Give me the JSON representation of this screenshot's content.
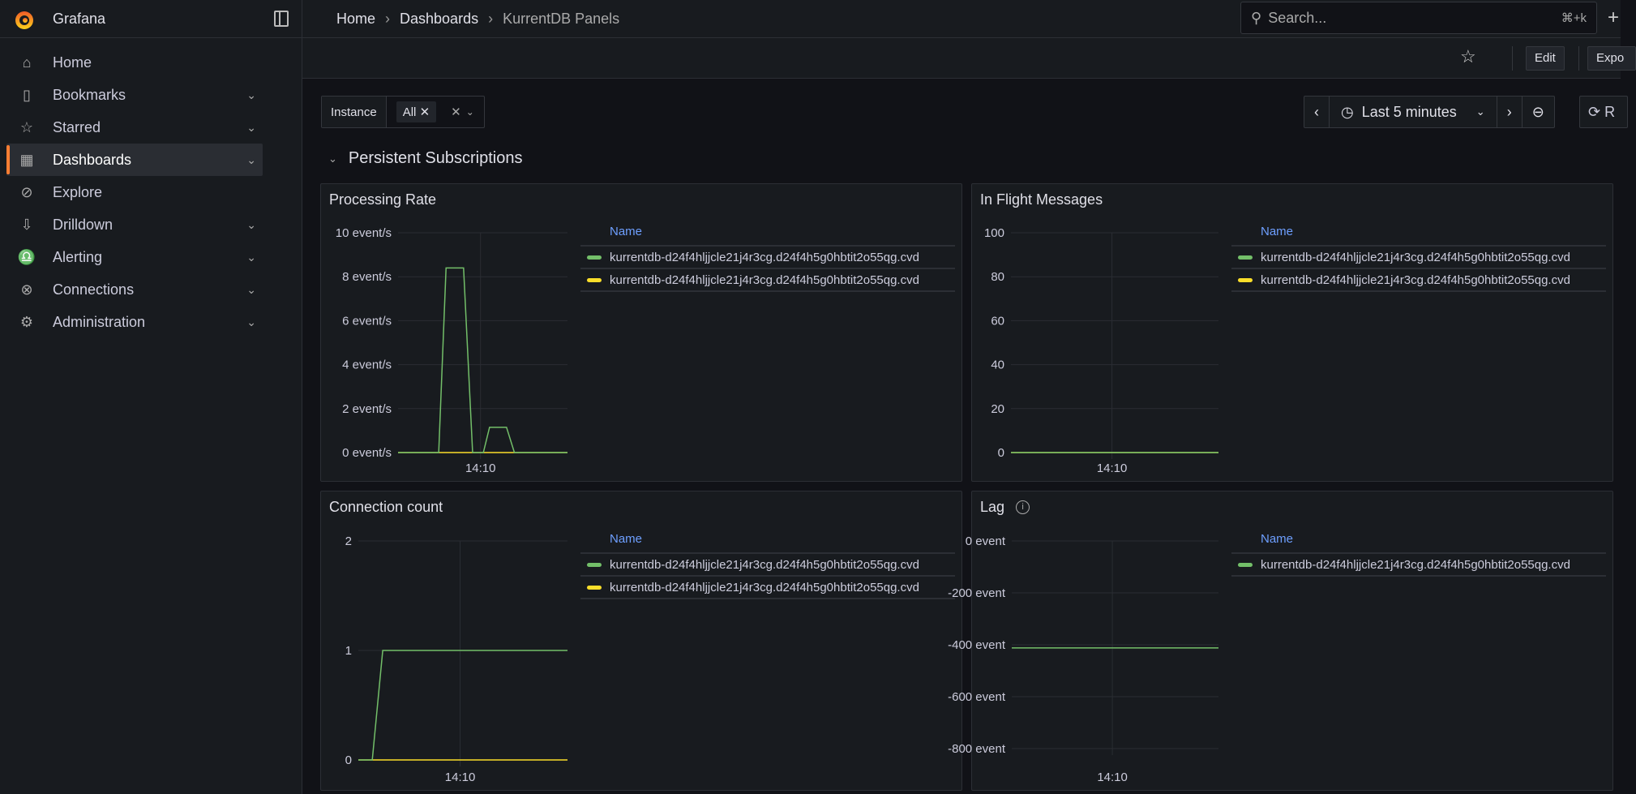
{
  "app": {
    "brand": "Grafana"
  },
  "sidebar": {
    "items": [
      {
        "label": "Home",
        "icon": "home-icon",
        "glyph": "⌂",
        "chevron": false
      },
      {
        "label": "Bookmarks",
        "icon": "bookmark-icon",
        "glyph": "▯",
        "chevron": true
      },
      {
        "label": "Starred",
        "icon": "star-icon",
        "glyph": "☆",
        "chevron": true
      },
      {
        "label": "Dashboards",
        "icon": "dashboards-grid-icon",
        "glyph": "▦",
        "chevron": true,
        "active": true
      },
      {
        "label": "Explore",
        "icon": "compass-icon",
        "glyph": "⊘",
        "chevron": false
      },
      {
        "label": "Drilldown",
        "icon": "drilldown-icon",
        "glyph": "⇩",
        "chevron": true
      },
      {
        "label": "Alerting",
        "icon": "bell-icon",
        "glyph": "♎",
        "chevron": true
      },
      {
        "label": "Connections",
        "icon": "connections-icon",
        "glyph": "⊗",
        "chevron": true
      },
      {
        "label": "Administration",
        "icon": "gear-icon",
        "glyph": "⚙",
        "chevron": true
      }
    ]
  },
  "breadcrumb": [
    "Home",
    "Dashboards",
    "KurrentDB Panels"
  ],
  "search": {
    "placeholder": "Search...",
    "shortcut": "⌘+k"
  },
  "toolbar": {
    "edit": "Edit",
    "export": "Expo"
  },
  "variables": {
    "label": "Instance",
    "value": "All"
  },
  "timepicker": {
    "range": "Last 5 minutes",
    "refresh": "R"
  },
  "row": {
    "title": "Persistent Subscriptions"
  },
  "colors": {
    "green": "#73bf69",
    "yellow": "#fade2a",
    "legend_header": "#6e9fff",
    "accent": "#ff7e33"
  },
  "chart_data": [
    {
      "type": "line",
      "title": "Processing Rate",
      "legend_header": "Name",
      "info": false,
      "ylim": [
        0,
        10
      ],
      "yticks": [
        0,
        2,
        4,
        6,
        8,
        10
      ],
      "ytick_labels": [
        "0 event/s",
        "2 event/s",
        "4 event/s",
        "6 event/s",
        "8 event/s",
        "10 event/s"
      ],
      "xlim": [
        "14:07:34",
        "14:12:34"
      ],
      "xticks": [
        "14:10"
      ],
      "series": [
        {
          "name": "kurrentdb-d24f4hljjcle21j4r3cg.d24f4h5g0hbtit2o55qg.cvd",
          "color": "#73bf69",
          "points": [
            [
              "14:07:34",
              0
            ],
            [
              "14:08:46",
              0
            ],
            [
              "14:08:59",
              8.4
            ],
            [
              "14:09:30",
              8.4
            ],
            [
              "14:09:46",
              0
            ],
            [
              "14:10:05",
              0
            ],
            [
              "14:10:16",
              1.15
            ],
            [
              "14:10:46",
              1.15
            ],
            [
              "14:11:00",
              0
            ],
            [
              "14:12:34",
              0
            ]
          ]
        },
        {
          "name": "kurrentdb-d24f4hljjcle21j4r3cg.d24f4h5g0hbtit2o55qg.cvd",
          "color": "#fade2a",
          "points": [
            [
              "14:07:34",
              0
            ],
            [
              "14:12:34",
              0
            ]
          ]
        }
      ]
    },
    {
      "type": "line",
      "title": "In Flight Messages",
      "legend_header": "Name",
      "info": false,
      "ylim": [
        0,
        100
      ],
      "yticks": [
        0,
        20,
        40,
        60,
        80,
        100
      ],
      "ytick_labels": [
        "0",
        "20",
        "40",
        "60",
        "80",
        "100"
      ],
      "xlim": [
        "14:07:34",
        "14:12:34"
      ],
      "xticks": [
        "14:10"
      ],
      "series": [
        {
          "name": "kurrentdb-d24f4hljjcle21j4r3cg.d24f4h5g0hbtit2o55qg.cvd",
          "color": "#73bf69",
          "points": [
            [
              "14:07:34",
              0
            ],
            [
              "14:12:34",
              0
            ]
          ]
        },
        {
          "name": "kurrentdb-d24f4hljjcle21j4r3cg.d24f4h5g0hbtit2o55qg.cvd",
          "color": "#fade2a",
          "points": [
            [
              "14:07:34",
              0
            ],
            [
              "14:12:34",
              0
            ]
          ]
        }
      ]
    },
    {
      "type": "line",
      "title": "Connection count",
      "legend_header": "Name",
      "info": false,
      "ylim": [
        0,
        2
      ],
      "yticks": [
        0,
        1,
        2
      ],
      "ytick_labels": [
        "0",
        "1",
        "2"
      ],
      "xlim": [
        "14:07:34",
        "14:12:34"
      ],
      "xticks": [
        "14:10"
      ],
      "series": [
        {
          "name": "kurrentdb-d24f4hljjcle21j4r3cg.d24f4h5g0hbtit2o55qg.cvd",
          "color": "#73bf69",
          "points": [
            [
              "14:07:34",
              0
            ],
            [
              "14:07:54",
              0
            ],
            [
              "14:08:09",
              1
            ],
            [
              "14:12:34",
              1
            ]
          ]
        },
        {
          "name": "kurrentdb-d24f4hljjcle21j4r3cg.d24f4h5g0hbtit2o55qg.cvd",
          "color": "#fade2a",
          "points": [
            [
              "14:07:34",
              0
            ],
            [
              "14:12:34",
              0
            ]
          ]
        }
      ]
    },
    {
      "type": "line",
      "title": "Lag",
      "legend_header": "Name",
      "info": true,
      "ylim": [
        -800,
        0
      ],
      "yticks": [
        -800,
        -600,
        -400,
        -200,
        0
      ],
      "ytick_labels": [
        "-800 event",
        "-600 event",
        "-400 event",
        "-200 event",
        "0 event"
      ],
      "xlim": [
        "14:07:34",
        "14:12:34"
      ],
      "xticks": [
        "14:10"
      ],
      "series": [
        {
          "name": "kurrentdb-d24f4hljjcle21j4r3cg.d24f4h5g0hbtit2o55qg.cvd",
          "color": "#73bf69",
          "points": [
            [
              "14:07:34",
              -412
            ],
            [
              "14:12:34",
              -412
            ]
          ]
        }
      ]
    }
  ]
}
